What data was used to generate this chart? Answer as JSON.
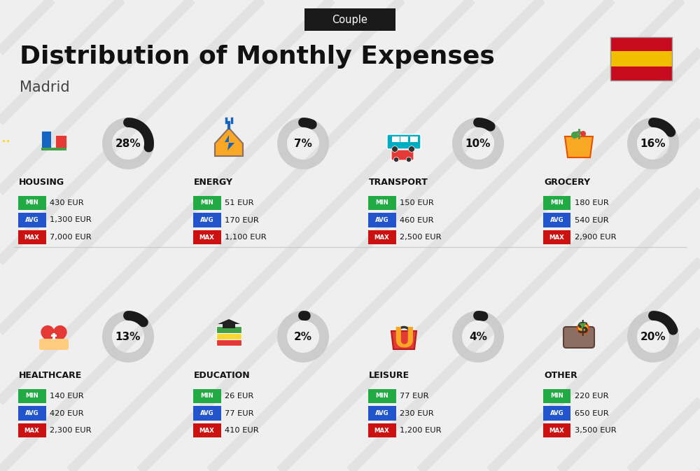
{
  "title": "Distribution of Monthly Expenses",
  "subtitle": "Couple",
  "city": "Madrid",
  "bg_color": "#efefef",
  "header_bg": "#1a1a1a",
  "header_text_color": "#ffffff",
  "title_color": "#111111",
  "city_color": "#444444",
  "min_color": "#22aa44",
  "avg_color": "#2255cc",
  "max_color": "#cc1111",
  "categories": [
    {
      "name": "HOUSING",
      "pct": 28,
      "min": "430 EUR",
      "avg": "1,300 EUR",
      "max": "7,000 EUR",
      "row": 0,
      "col": 0
    },
    {
      "name": "ENERGY",
      "pct": 7,
      "min": "51 EUR",
      "avg": "170 EUR",
      "max": "1,100 EUR",
      "row": 0,
      "col": 1
    },
    {
      "name": "TRANSPORT",
      "pct": 10,
      "min": "150 EUR",
      "avg": "460 EUR",
      "max": "2,500 EUR",
      "row": 0,
      "col": 2
    },
    {
      "name": "GROCERY",
      "pct": 16,
      "min": "180 EUR",
      "avg": "540 EUR",
      "max": "2,900 EUR",
      "row": 0,
      "col": 3
    },
    {
      "name": "HEALTHCARE",
      "pct": 13,
      "min": "140 EUR",
      "avg": "420 EUR",
      "max": "2,300 EUR",
      "row": 1,
      "col": 0
    },
    {
      "name": "EDUCATION",
      "pct": 2,
      "min": "26 EUR",
      "avg": "77 EUR",
      "max": "410 EUR",
      "row": 1,
      "col": 1
    },
    {
      "name": "LEISURE",
      "pct": 4,
      "min": "77 EUR",
      "avg": "230 EUR",
      "max": "1,200 EUR",
      "row": 1,
      "col": 2
    },
    {
      "name": "OTHER",
      "pct": 20,
      "min": "220 EUR",
      "avg": "650 EUR",
      "max": "3,500 EUR",
      "row": 1,
      "col": 3
    }
  ],
  "icon_colors": {
    "HOUSING": [
      "#1565c0",
      "#e53935",
      "#fdd835",
      "#43a047"
    ],
    "ENERGY": [
      "#00acc1",
      "#f9a825",
      "#5c6bc0"
    ],
    "TRANSPORT": [
      "#00acc1",
      "#e53935",
      "#7cb342"
    ],
    "GROCERY": [
      "#f9a825",
      "#43a047",
      "#e53935",
      "#5c6bc0"
    ],
    "HEALTHCARE": [
      "#e53935",
      "#f48fb1",
      "#43a047"
    ],
    "EDUCATION": [
      "#4527a0",
      "#e53935",
      "#fdd835",
      "#43a047"
    ],
    "LEISURE": [
      "#e53935",
      "#f9a825",
      "#5c6bc0"
    ],
    "OTHER": [
      "#8d6e63",
      "#f9a825",
      "#43a047"
    ]
  }
}
